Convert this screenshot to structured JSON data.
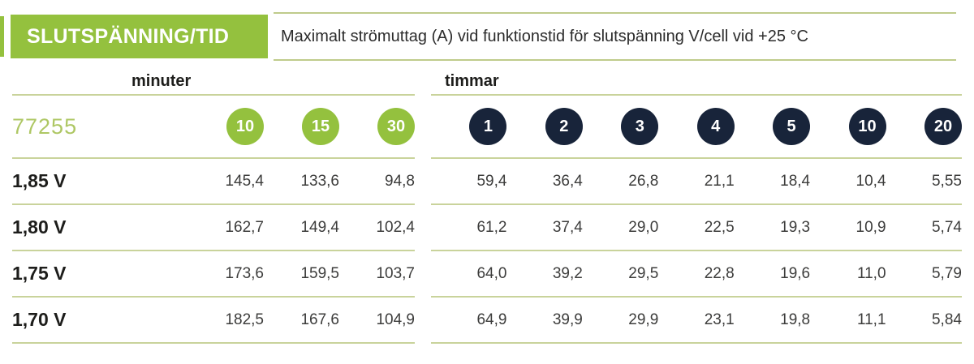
{
  "header": {
    "title": "SLUTSPÄNNING/TID",
    "subtitle": "Maximalt strömuttag (A) vid funktionstid för slutspänning V/cell vid +25 °C"
  },
  "table": {
    "product_code": "77255",
    "minutes": {
      "label": "minuter",
      "columns": [
        "10",
        "15",
        "30"
      ]
    },
    "hours": {
      "label": "timmar",
      "columns": [
        "1",
        "2",
        "3",
        "4",
        "5",
        "10",
        "20"
      ]
    },
    "rows": [
      {
        "label": "1,85 V",
        "min": [
          "145,4",
          "133,6",
          "94,8"
        ],
        "hr": [
          "59,4",
          "36,4",
          "26,8",
          "21,1",
          "18,4",
          "10,4",
          "5,55"
        ]
      },
      {
        "label": "1,80 V",
        "min": [
          "162,7",
          "149,4",
          "102,4"
        ],
        "hr": [
          "61,2",
          "37,4",
          "29,0",
          "22,5",
          "19,3",
          "10,9",
          "5,74"
        ]
      },
      {
        "label": "1,75 V",
        "min": [
          "173,6",
          "159,5",
          "103,7"
        ],
        "hr": [
          "64,0",
          "39,2",
          "29,5",
          "22,8",
          "19,6",
          "11,0",
          "5,79"
        ]
      },
      {
        "label": "1,70 V",
        "min": [
          "182,5",
          "167,6",
          "104,9"
        ],
        "hr": [
          "64,9",
          "39,9",
          "29,9",
          "23,1",
          "19,8",
          "11,1",
          "5,84"
        ]
      }
    ]
  },
  "colors": {
    "green": "#94c13e",
    "navy": "#18243a",
    "pale_line": "#c9d39b",
    "pale_border": "#bfcb8b",
    "code_green": "#aec764"
  }
}
